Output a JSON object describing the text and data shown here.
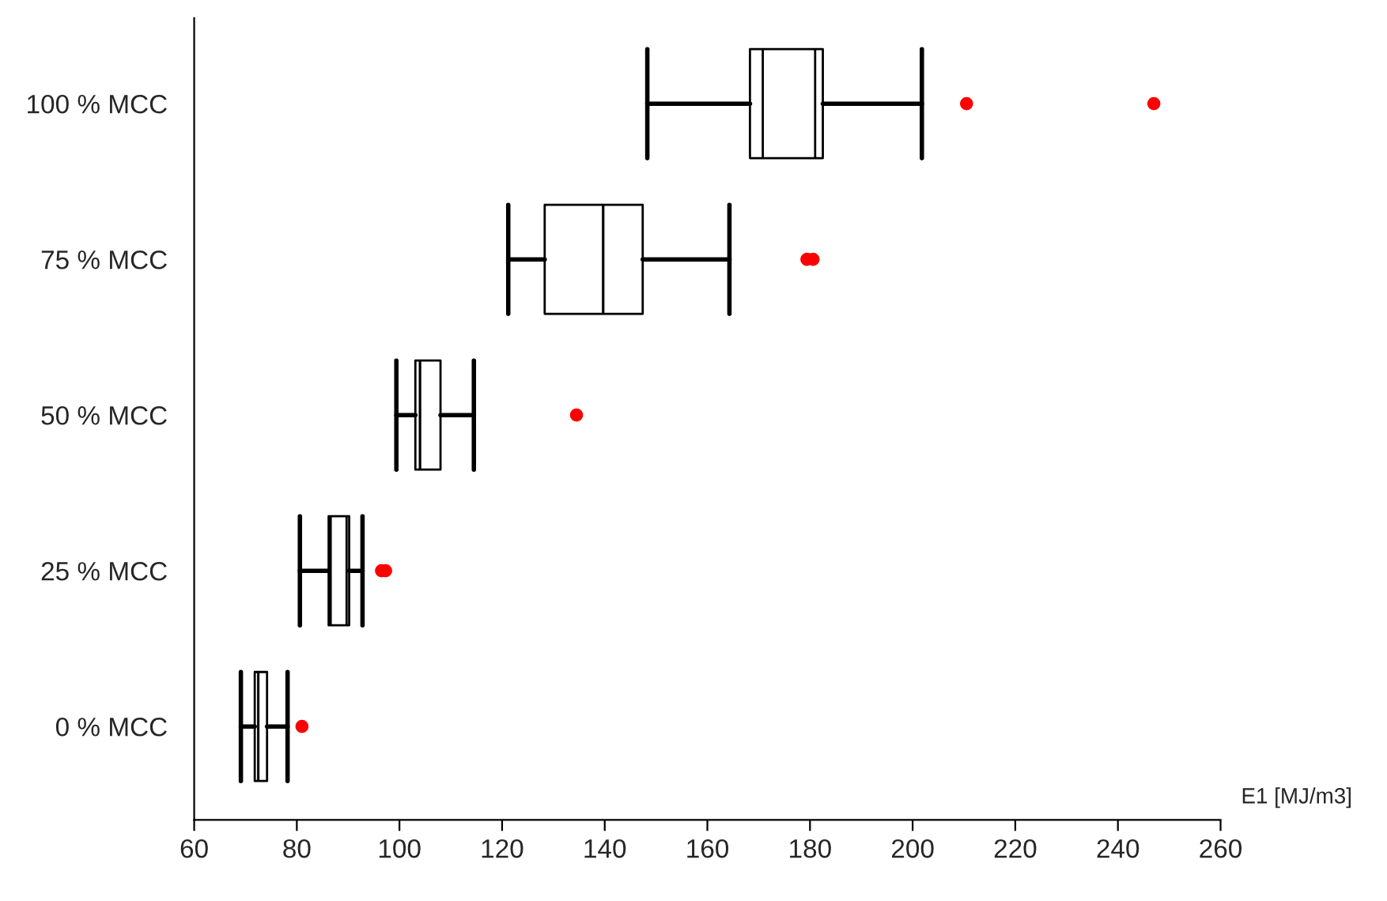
{
  "chart_data": {
    "type": "box",
    "orientation": "horizontal",
    "xlabel": "E1 [MJ/m3]",
    "categories": [
      "100 % MCC",
      "75 % MCC",
      "50 % MCC",
      "25 % MCC",
      "0 % MCC"
    ],
    "boxes": [
      {
        "low": 148.3,
        "q1": 168.3,
        "median": 170.8,
        "q3": 182.5,
        "high": 201.8,
        "mean": 181,
        "outliers": [
          210.5,
          247
        ]
      },
      {
        "low": 121.2,
        "q1": 128.3,
        "median": 139.7,
        "q3": 147.4,
        "high": 164.3,
        "outliers": [
          179.4,
          180.6
        ]
      },
      {
        "low": 99.4,
        "q1": 103.1,
        "median": 104,
        "q3": 108,
        "high": 114.5,
        "outliers": [
          134.5
        ]
      },
      {
        "low": 80.6,
        "q1": 86.2,
        "median": 86.6,
        "q3": 90.2,
        "high": 92.8,
        "mean": 89.7,
        "outliers": [
          96.5,
          97.3
        ]
      },
      {
        "low": 69.1,
        "q1": 71.8,
        "median": 72.5,
        "q3": 74.2,
        "high": 78.2,
        "outliers": [
          81
        ]
      }
    ],
    "color": "#000000",
    "xlim": [
      60,
      260
    ],
    "xticks": [
      60,
      80,
      100,
      120,
      140,
      160,
      180,
      200,
      220,
      240,
      260
    ],
    "grid": false
  }
}
